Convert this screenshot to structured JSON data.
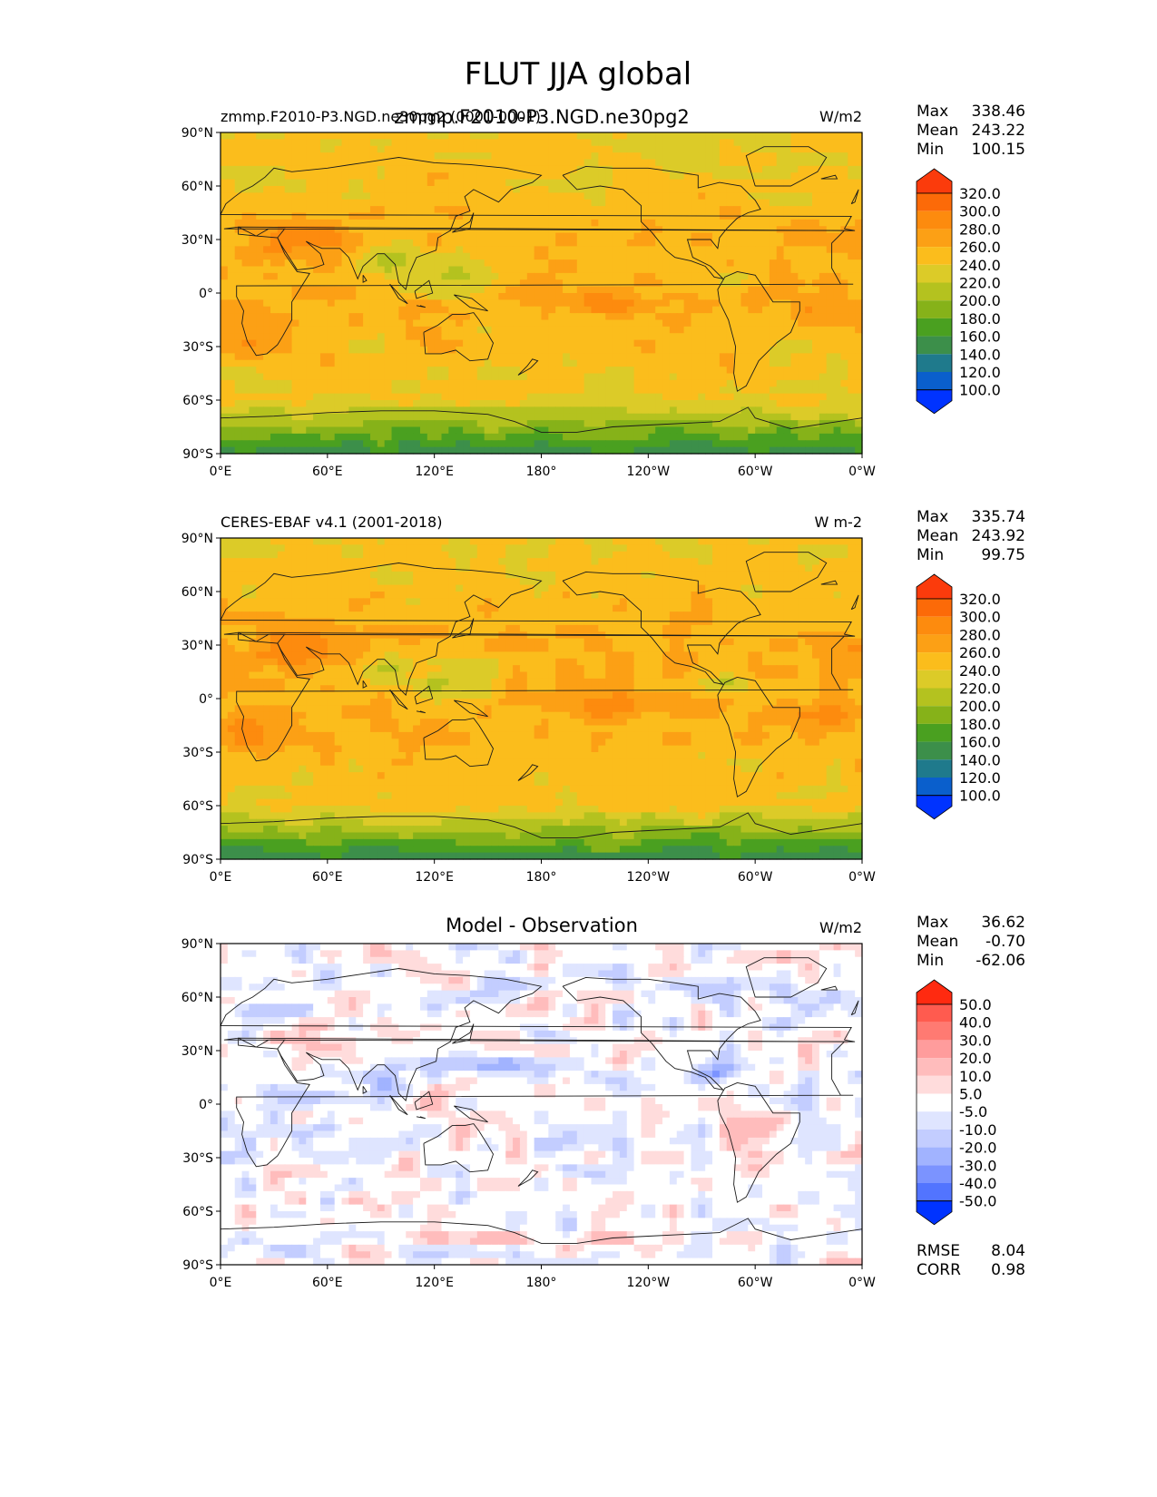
{
  "figure": {
    "title": "FLUT JJA global"
  },
  "colors": {
    "fill_cmap": [
      "#0033ff",
      "#0a5fcc",
      "#1f7a8c",
      "#3c8f4a",
      "#4aa020",
      "#86b219",
      "#b4c21f",
      "#dccb28",
      "#fbbd1c",
      "#fca015",
      "#fd8b0e",
      "#fc6a08",
      "#fb3b0c"
    ],
    "diff_cmap": [
      "#0033ff",
      "#5274ff",
      "#7b93ff",
      "#a1b3ff",
      "#c3cdff",
      "#dfe5ff",
      "#ffffff",
      "#ffdcdc",
      "#ffbcbc",
      "#ff9c9c",
      "#ff7a72",
      "#ff5b4f",
      "#ff2a10"
    ]
  },
  "chart_data": [
    {
      "type": "heatmap",
      "title": "zmmp.F2010-P3.NGD.ne30pg2",
      "subtitle_left": "zmmp.F2010-P3.NGD.ne30pg2 (0001-0001)",
      "units": "W/m2",
      "yticks": [
        "90°N",
        "60°N",
        "30°N",
        "0°",
        "30°S",
        "60°S",
        "90°S"
      ],
      "xticks": [
        "0°E",
        "60°E",
        "120°E",
        "180°",
        "120°W",
        "60°W",
        "0°W"
      ],
      "stats": {
        "max_label": "Max",
        "max": "338.46",
        "mean_label": "Mean",
        "mean": "243.22",
        "min_label": "Min",
        "min": "100.15"
      },
      "colorbar_ticks": [
        "320.0",
        "300.0",
        "280.0",
        "260.0",
        "240.0",
        "220.0",
        "200.0",
        "180.0",
        "160.0",
        "140.0",
        "120.0",
        "100.0"
      ],
      "extra_stats": []
    },
    {
      "type": "heatmap",
      "title": "",
      "subtitle_left": "CERES-EBAF v4.1 (2001-2018)",
      "units": "W m-2",
      "yticks": [
        "90°N",
        "60°N",
        "30°N",
        "0°",
        "30°S",
        "60°S",
        "90°S"
      ],
      "xticks": [
        "0°E",
        "60°E",
        "120°E",
        "180°",
        "120°W",
        "60°W",
        "0°W"
      ],
      "stats": {
        "max_label": "Max",
        "max": "335.74",
        "mean_label": "Mean",
        "mean": "243.92",
        "min_label": "Min",
        "min": "99.75"
      },
      "colorbar_ticks": [
        "320.0",
        "300.0",
        "280.0",
        "260.0",
        "240.0",
        "220.0",
        "200.0",
        "180.0",
        "160.0",
        "140.0",
        "120.0",
        "100.0"
      ],
      "extra_stats": []
    },
    {
      "type": "heatmap",
      "title": "Model - Observation",
      "subtitle_left": "",
      "units": "W/m2",
      "yticks": [
        "90°N",
        "60°N",
        "30°N",
        "0°",
        "30°S",
        "60°S",
        "90°S"
      ],
      "xticks": [
        "0°E",
        "60°E",
        "120°E",
        "180°",
        "120°W",
        "60°W",
        "0°W"
      ],
      "stats": {
        "max_label": "Max",
        "max": "36.62",
        "mean_label": "Mean",
        "mean": "-0.70",
        "min_label": "Min",
        "min": "-62.06"
      },
      "colorbar_ticks": [
        "50.0",
        "40.0",
        "30.0",
        "20.0",
        "10.0",
        "5.0",
        "-5.0",
        "-10.0",
        "-20.0",
        "-30.0",
        "-40.0",
        "-50.0"
      ],
      "extra_stats": [
        {
          "label": "RMSE",
          "value": "8.04"
        },
        {
          "label": "CORR",
          "value": "0.98"
        }
      ]
    }
  ]
}
